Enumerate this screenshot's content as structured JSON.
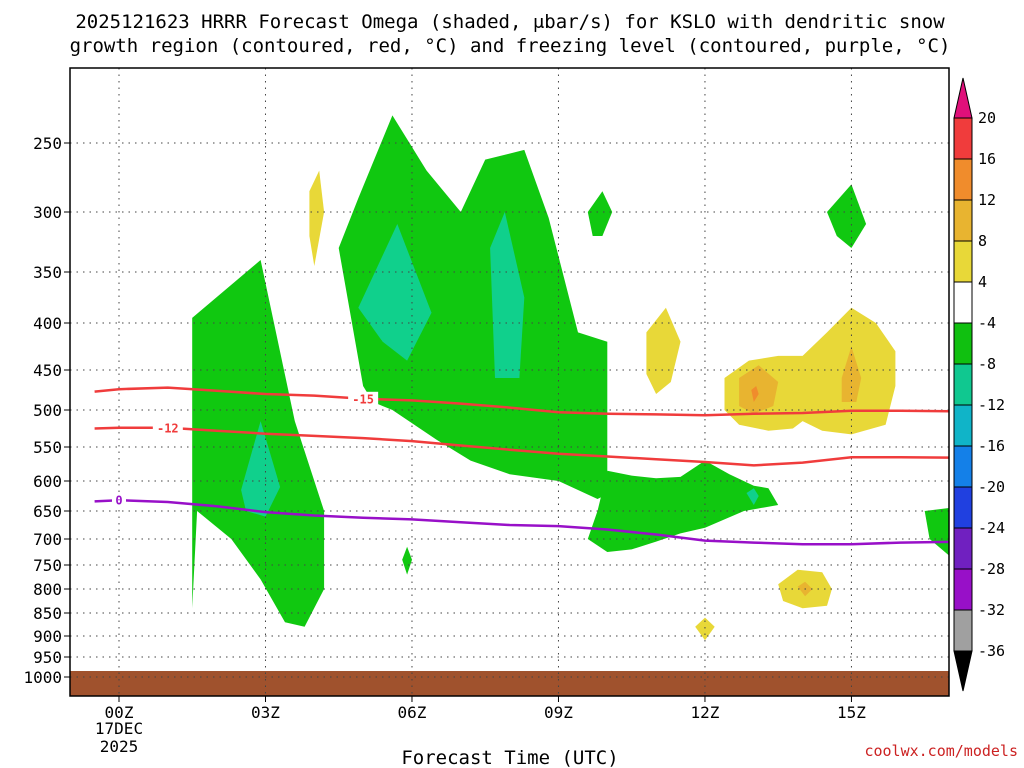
{
  "chart_data": {
    "type": "heatmap",
    "title_line1": "2025121623 HRRR Forecast Omega (shaded, μbar/s) for KSLO with dendritic snow",
    "title_line2": "growth region (contoured, red, °C) and freezing level (contoured, purple, °C)",
    "xlabel": "Forecast Time (UTC)",
    "credit": "coolwx.com/models",
    "x_range": [
      -0.5,
      17.5
    ],
    "x_ticks": [
      {
        "v": 0,
        "label": "00Z"
      },
      {
        "v": 3,
        "label": "03Z"
      },
      {
        "v": 6,
        "label": "06Z"
      },
      {
        "v": 9,
        "label": "09Z"
      },
      {
        "v": 12,
        "label": "12Z"
      },
      {
        "v": 15,
        "label": "15Z"
      }
    ],
    "date_label_1": "17DEC",
    "date_label_2": "2025",
    "y_ticks": [
      {
        "v": 250,
        "label": "250"
      },
      {
        "v": 300,
        "label": "300"
      },
      {
        "v": 350,
        "label": "350"
      },
      {
        "v": 400,
        "label": "400"
      },
      {
        "v": 450,
        "label": "450"
      },
      {
        "v": 500,
        "label": "500"
      },
      {
        "v": 550,
        "label": "550"
      },
      {
        "v": 600,
        "label": "600"
      },
      {
        "v": 650,
        "label": "650"
      },
      {
        "v": 700,
        "label": "700"
      },
      {
        "v": 750,
        "label": "750"
      },
      {
        "v": 800,
        "label": "800"
      },
      {
        "v": 850,
        "label": "850"
      },
      {
        "v": 900,
        "label": "900"
      },
      {
        "v": 950,
        "label": "950"
      },
      {
        "v": 1000,
        "label": "1000"
      }
    ],
    "ground_level_hpa": 985,
    "colorbar": {
      "labels": [
        "20",
        "16",
        "12",
        "8",
        "4",
        "-4",
        "-8",
        "-12",
        "-16",
        "-20",
        "-24",
        "-28",
        "-32",
        "-36"
      ],
      "colors": [
        "#e0107a",
        "#f03c3c",
        "#f08c2c",
        "#e8b430",
        "#e8d838",
        "#ffffff",
        "#10c010",
        "#10c890",
        "#10b4c8",
        "#1480e8",
        "#2040e0",
        "#7020c0",
        "#9810c8",
        "#a0a0a0",
        "#000000"
      ]
    },
    "colors": {
      "green": "#10c810",
      "teal": "#10d08c",
      "yellow": "#e8d838",
      "gold": "#e8b430",
      "orange": "#f08c2c",
      "red_contour": "#f03c3c",
      "purple_contour": "#9810c8",
      "ground": "#a0522d"
    },
    "contours": [
      {
        "name": "-15",
        "color": "#f03c3c",
        "label": "-15",
        "label_at": 5,
        "points": [
          [
            -0.5,
            477
          ],
          [
            0,
            474
          ],
          [
            1,
            472
          ],
          [
            2,
            476
          ],
          [
            3,
            480
          ],
          [
            4,
            482
          ],
          [
            5,
            486
          ],
          [
            6,
            488
          ],
          [
            7,
            492
          ],
          [
            8,
            497
          ],
          [
            9,
            503
          ],
          [
            10,
            505
          ],
          [
            11,
            506
          ],
          [
            12,
            507
          ],
          [
            13,
            505
          ],
          [
            14,
            504
          ],
          [
            15,
            501
          ],
          [
            16,
            501
          ],
          [
            17.5,
            502
          ]
        ]
      },
      {
        "name": "-12",
        "color": "#f03c3c",
        "label": "-12",
        "label_at": 1,
        "points": [
          [
            -0.5,
            525
          ],
          [
            0,
            524
          ],
          [
            1,
            524
          ],
          [
            2,
            528
          ],
          [
            3,
            532
          ],
          [
            4,
            535
          ],
          [
            5,
            538
          ],
          [
            6,
            542
          ],
          [
            7,
            548
          ],
          [
            8,
            554
          ],
          [
            9,
            560
          ],
          [
            10,
            564
          ],
          [
            11,
            568
          ],
          [
            12,
            572
          ],
          [
            13,
            577
          ],
          [
            14,
            573
          ],
          [
            15,
            565
          ],
          [
            16,
            565
          ],
          [
            17.5,
            566
          ]
        ]
      },
      {
        "name": "0",
        "color": "#9810c8",
        "label": "0",
        "label_at": 0,
        "points": [
          [
            -0.5,
            634
          ],
          [
            0,
            632
          ],
          [
            1,
            635
          ],
          [
            2,
            642
          ],
          [
            3,
            652
          ],
          [
            4,
            658
          ],
          [
            5,
            662
          ],
          [
            6,
            665
          ],
          [
            7,
            670
          ],
          [
            8,
            675
          ],
          [
            9,
            677
          ],
          [
            10,
            683
          ],
          [
            11,
            692
          ],
          [
            12,
            703
          ],
          [
            13,
            707
          ],
          [
            14,
            710
          ],
          [
            15,
            710
          ],
          [
            16,
            707
          ],
          [
            17.5,
            705
          ]
        ]
      }
    ],
    "regions": [
      {
        "name": "green-region-a",
        "fill": "#10c810",
        "points": [
          [
            1.5,
            840
          ],
          [
            1.5,
            395
          ],
          [
            2.9,
            340
          ],
          [
            3.6,
            515
          ],
          [
            4.2,
            650
          ],
          [
            4.2,
            800
          ],
          [
            3.8,
            880
          ],
          [
            3.4,
            870
          ],
          [
            2.9,
            780
          ],
          [
            2.3,
            700
          ],
          [
            1.6,
            650
          ]
        ]
      },
      {
        "name": "teal-region-a",
        "fill": "#10d08c",
        "points": [
          [
            2.5,
            615
          ],
          [
            2.9,
            515
          ],
          [
            3.3,
            610
          ],
          [
            3.0,
            660
          ],
          [
            2.6,
            650
          ]
        ]
      },
      {
        "name": "green-region-b",
        "fill": "#10c810",
        "points": [
          [
            5.0,
            470
          ],
          [
            4.5,
            330
          ],
          [
            4.9,
            290
          ],
          [
            5.6,
            230
          ],
          [
            6.3,
            270
          ],
          [
            7.0,
            300
          ],
          [
            7.5,
            262
          ],
          [
            8.3,
            255
          ],
          [
            8.8,
            305
          ],
          [
            9.4,
            410
          ],
          [
            10.0,
            420
          ],
          [
            10.0,
            622
          ],
          [
            9.8,
            630
          ],
          [
            9.0,
            600
          ],
          [
            8.0,
            590
          ],
          [
            7.2,
            570
          ],
          [
            6.5,
            540
          ],
          [
            5.6,
            500
          ],
          [
            5.2,
            490
          ]
        ]
      },
      {
        "name": "teal-region-b",
        "fill": "#10d08c",
        "points": [
          [
            4.9,
            385
          ],
          [
            5.7,
            310
          ],
          [
            6.4,
            390
          ],
          [
            5.9,
            440
          ],
          [
            5.4,
            420
          ]
        ]
      },
      {
        "name": "teal-region-c",
        "fill": "#10d08c",
        "points": [
          [
            7.6,
            330
          ],
          [
            7.9,
            300
          ],
          [
            8.3,
            375
          ],
          [
            8.2,
            460
          ],
          [
            7.7,
            460
          ]
        ]
      },
      {
        "name": "green-region-c",
        "fill": "#10c810",
        "points": [
          [
            10,
            585
          ],
          [
            10.5,
            592
          ],
          [
            11.0,
            596
          ],
          [
            11.5,
            594
          ],
          [
            12.0,
            570
          ],
          [
            12.5,
            590
          ],
          [
            13.0,
            608
          ],
          [
            13.3,
            612
          ],
          [
            13.5,
            640
          ],
          [
            12.8,
            650
          ],
          [
            12.0,
            680
          ],
          [
            11.5,
            690
          ],
          [
            11.0,
            705
          ],
          [
            10.5,
            720
          ],
          [
            10.0,
            725
          ],
          [
            9.6,
            700
          ],
          [
            9.8,
            650
          ]
        ]
      },
      {
        "name": "green-region-d",
        "fill": "#10c810",
        "points": [
          [
            16.5,
            650
          ],
          [
            17.5,
            640
          ],
          [
            17.5,
            750
          ],
          [
            17.1,
            740
          ],
          [
            16.6,
            700
          ]
        ]
      },
      {
        "name": "green-region-e",
        "fill": "#10c810",
        "points": [
          [
            9.6,
            300
          ],
          [
            9.9,
            285
          ],
          [
            10.1,
            300
          ],
          [
            9.9,
            320
          ],
          [
            9.7,
            320
          ]
        ]
      },
      {
        "name": "green-region-f",
        "fill": "#10c810",
        "points": [
          [
            14.5,
            300
          ],
          [
            15.0,
            280
          ],
          [
            15.3,
            310
          ],
          [
            15.0,
            330
          ],
          [
            14.7,
            320
          ]
        ]
      },
      {
        "name": "green-region-g",
        "fill": "#10c810",
        "points": [
          [
            5.8,
            740
          ],
          [
            5.9,
            715
          ],
          [
            6.0,
            740
          ],
          [
            5.9,
            770
          ]
        ]
      },
      {
        "name": "yellow-region-a",
        "fill": "#e8d838",
        "points": [
          [
            3.9,
            285
          ],
          [
            4.1,
            270
          ],
          [
            4.2,
            300
          ],
          [
            4.0,
            345
          ],
          [
            3.9,
            320
          ]
        ]
      },
      {
        "name": "yellow-region-b",
        "fill": "#e8d838",
        "points": [
          [
            10.8,
            410
          ],
          [
            11.2,
            385
          ],
          [
            11.5,
            420
          ],
          [
            11.3,
            465
          ],
          [
            11.0,
            480
          ],
          [
            10.8,
            455
          ]
        ]
      },
      {
        "name": "yellow-region-c",
        "fill": "#e8d838",
        "points": [
          [
            12.4,
            460
          ],
          [
            12.9,
            440
          ],
          [
            13.5,
            435
          ],
          [
            14,
            435
          ],
          [
            14.5,
            410
          ],
          [
            15.0,
            385
          ],
          [
            15.5,
            400
          ],
          [
            15.9,
            430
          ],
          [
            15.9,
            470
          ],
          [
            15.7,
            520
          ],
          [
            15.0,
            533
          ],
          [
            14.4,
            528
          ],
          [
            14.0,
            515
          ],
          [
            13.8,
            525
          ],
          [
            13.3,
            528
          ],
          [
            12.7,
            520
          ],
          [
            12.4,
            500
          ]
        ]
      },
      {
        "name": "gold-region-a",
        "fill": "#e8b430",
        "points": [
          [
            12.7,
            460
          ],
          [
            13.1,
            445
          ],
          [
            13.5,
            465
          ],
          [
            13.4,
            495
          ],
          [
            13.0,
            505
          ],
          [
            12.7,
            495
          ]
        ]
      },
      {
        "name": "gold-region-b",
        "fill": "#e8b430",
        "points": [
          [
            14.8,
            460
          ],
          [
            15.0,
            425
          ],
          [
            15.2,
            460
          ],
          [
            15.1,
            490
          ],
          [
            14.8,
            490
          ]
        ]
      },
      {
        "name": "orange-spot-a",
        "fill": "#f08c2c",
        "points": [
          [
            12.95,
            475
          ],
          [
            13.05,
            470
          ],
          [
            13.1,
            480
          ],
          [
            13.0,
            490
          ]
        ]
      },
      {
        "name": "yellow-region-d",
        "fill": "#e8d838",
        "points": [
          [
            13.5,
            790
          ],
          [
            13.9,
            760
          ],
          [
            14.4,
            765
          ],
          [
            14.6,
            800
          ],
          [
            14.5,
            835
          ],
          [
            14.0,
            840
          ],
          [
            13.6,
            825
          ]
        ]
      },
      {
        "name": "gold-region-c",
        "fill": "#e8b430",
        "points": [
          [
            13.9,
            795
          ],
          [
            14.05,
            785
          ],
          [
            14.2,
            800
          ],
          [
            14.05,
            815
          ]
        ]
      },
      {
        "name": "yellow-region-e",
        "fill": "#e8d838",
        "points": [
          [
            11.8,
            880
          ],
          [
            12.0,
            860
          ],
          [
            12.2,
            880
          ],
          [
            12.0,
            910
          ]
        ]
      },
      {
        "name": "teal-spot-b",
        "fill": "#10d08c",
        "points": [
          [
            12.85,
            620
          ],
          [
            13.0,
            612
          ],
          [
            13.1,
            625
          ],
          [
            13.0,
            640
          ]
        ]
      }
    ]
  }
}
